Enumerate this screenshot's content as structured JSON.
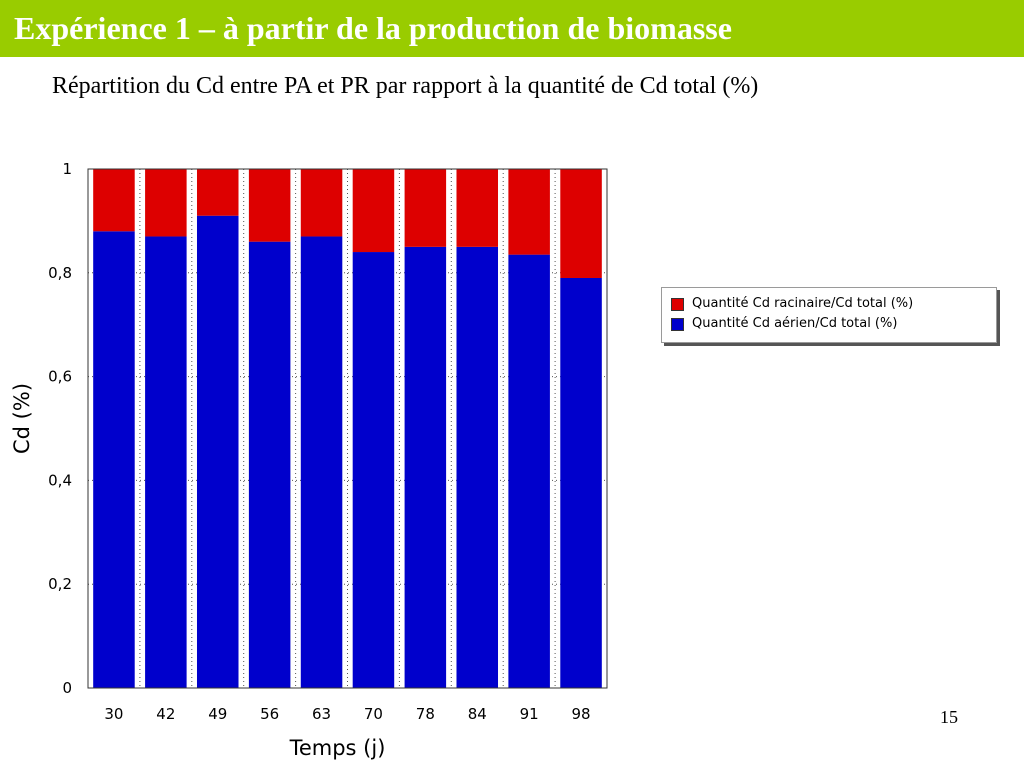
{
  "slide": {
    "title": "Expérience 1 – à partir de la production de biomasse",
    "subtitle": "Répartition du Cd entre PA et PR par rapport à la quantité de Cd total (%)",
    "page_number": "15",
    "colors": {
      "title_bar": "#99cc00",
      "title_text": "#ffffff"
    }
  },
  "chart_data": {
    "type": "bar",
    "stacked": true,
    "categories": [
      "30",
      "42",
      "49",
      "56",
      "63",
      "70",
      "78",
      "84",
      "91",
      "98"
    ],
    "series": [
      {
        "name": "Quantité Cd aérien/Cd total (%)",
        "color": "#0000cc",
        "values": [
          0.88,
          0.87,
          0.91,
          0.86,
          0.87,
          0.84,
          0.85,
          0.85,
          0.835,
          0.79
        ]
      },
      {
        "name": "Quantité Cd racinaire/Cd total (%)",
        "color": "#dd0000",
        "values": [
          0.12,
          0.13,
          0.09,
          0.14,
          0.13,
          0.16,
          0.15,
          0.15,
          0.165,
          0.21
        ]
      }
    ],
    "xlabel": "Temps (j)",
    "ylabel": "Cd (%)",
    "ylim": [
      0,
      1
    ],
    "yticks": [
      "0",
      "0,2",
      "0,4",
      "0,6",
      "0,8",
      "1"
    ],
    "grid": true,
    "legend": {
      "placement": "right",
      "entries": [
        {
          "label": "Quantité Cd racinaire/Cd total (%)",
          "color": "#dd0000"
        },
        {
          "label": "Quantité Cd aérien/Cd total (%)",
          "color": "#0000cc"
        }
      ]
    }
  }
}
